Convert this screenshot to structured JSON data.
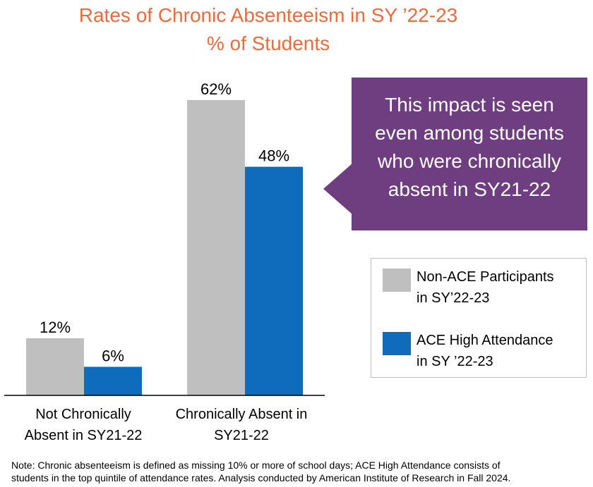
{
  "chart_data": {
    "type": "bar",
    "title": "Rates of Chronic Absenteeism in SY ’22-23",
    "subtitle": "% of Students",
    "categories": [
      [
        "Not Chronically",
        "Absent in SY21-22"
      ],
      [
        "Chronically Absent in",
        "SY21-22"
      ]
    ],
    "series": [
      {
        "name": "Non-ACE Participants in SY’22-23",
        "legend_lines": [
          "Non-ACE Participants",
          "in SY’22-23"
        ],
        "color": "#BFBFBF",
        "values": [
          12,
          62
        ],
        "labels": [
          "12%",
          "62%"
        ]
      },
      {
        "name": "ACE High Attendance in SY ’22-23",
        "legend_lines": [
          "ACE High Attendance",
          "in SY ’22-23"
        ],
        "color": "#0F6CBD",
        "values": [
          6,
          48
        ],
        "labels": [
          "6%",
          "48%"
        ]
      }
    ],
    "ylim": [
      0,
      70
    ],
    "xlabel": "",
    "ylabel": "",
    "grid": false,
    "legend_position": "right"
  },
  "callout": {
    "lines": [
      "This impact is seen",
      "even among students",
      "who were chronically",
      "absent in SY21-22"
    ],
    "color": "#6F3E80"
  },
  "note": {
    "lines": [
      "Note: Chronic absenteeism is defined as missing 10% or more of school days; ACE High Attendance consists of",
      "students in the top quintile of attendance rates. Analysis conducted by American Institute of Research in Fall 2024."
    ]
  }
}
